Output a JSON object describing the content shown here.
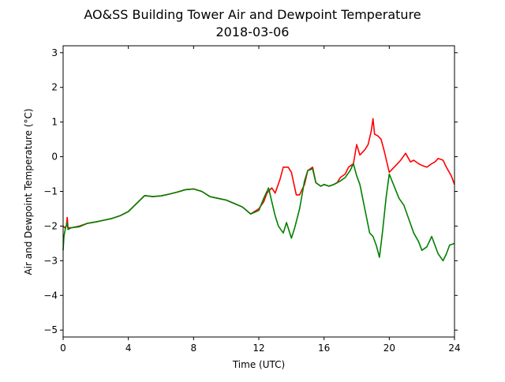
{
  "chart_data": {
    "type": "line",
    "title": "AO&SS Building Tower Air and Dewpoint Temperature",
    "subtitle": "2018-03-06",
    "xlabel": "Time (UTC)",
    "ylabel": "Air and Dewpoint Temperature (°C)",
    "xlim": [
      0,
      24
    ],
    "ylim": [
      -5.2,
      3.2
    ],
    "xticks": [
      0,
      4,
      8,
      12,
      16,
      20,
      24
    ],
    "xtick_labels": [
      "0",
      "4",
      "8",
      "12",
      "16",
      "20",
      "24"
    ],
    "yticks": [
      -5,
      -4,
      -3,
      -2,
      -1,
      0,
      1,
      2,
      3
    ],
    "ytick_labels": [
      "−5",
      "−4",
      "−3",
      "−2",
      "−1",
      "0",
      "1",
      "2",
      "3"
    ],
    "grid": false,
    "series": [
      {
        "color": "#ff0000",
        "x": [
          0,
          0.1,
          0.2,
          0.25,
          0.3,
          0.5,
          1,
          1.5,
          2,
          2.5,
          3,
          3.5,
          4,
          4.5,
          5,
          5.5,
          6,
          6.5,
          7,
          7.5,
          8,
          8.5,
          9,
          9.5,
          10,
          10.5,
          11,
          11.5,
          12,
          12.3,
          12.5,
          12.8,
          13,
          13.3,
          13.5,
          13.8,
          14,
          14.3,
          14.5,
          14.8,
          15,
          15.3,
          15.5,
          15.8,
          16,
          16.3,
          16.6,
          16.8,
          17,
          17.3,
          17.5,
          17.8,
          18,
          18.2,
          18.5,
          18.7,
          18.9,
          19,
          19.1,
          19.3,
          19.5,
          19.7,
          20,
          20.3,
          20.5,
          20.7,
          21,
          21.3,
          21.5,
          21.8,
          22,
          22.3,
          22.6,
          22.8,
          23,
          23.3,
          23.5,
          23.8,
          24
        ],
        "y": [
          -2.0,
          -2.05,
          -2.0,
          -1.75,
          -2.05,
          -2.05,
          -2.0,
          -1.92,
          -1.88,
          -1.83,
          -1.78,
          -1.7,
          -1.58,
          -1.35,
          -1.12,
          -1.15,
          -1.13,
          -1.08,
          -1.02,
          -0.95,
          -0.93,
          -1.0,
          -1.15,
          -1.2,
          -1.25,
          -1.35,
          -1.45,
          -1.65,
          -1.5,
          -1.3,
          -1.05,
          -0.9,
          -1.05,
          -0.65,
          -0.3,
          -0.3,
          -0.45,
          -1.1,
          -1.1,
          -0.8,
          -0.4,
          -0.3,
          -0.75,
          -0.85,
          -0.8,
          -0.85,
          -0.8,
          -0.75,
          -0.6,
          -0.5,
          -0.3,
          -0.2,
          0.35,
          0.05,
          0.2,
          0.35,
          0.75,
          1.1,
          0.65,
          0.6,
          0.5,
          0.15,
          -0.45,
          -0.3,
          -0.2,
          -0.1,
          0.1,
          -0.15,
          -0.1,
          -0.2,
          -0.25,
          -0.3,
          -0.2,
          -0.15,
          -0.05,
          -0.1,
          -0.3,
          -0.55,
          -0.8
        ]
      },
      {
        "color": "#008000",
        "x": [
          0,
          0.05,
          0.15,
          0.25,
          0.3,
          0.5,
          1,
          1.5,
          2,
          2.5,
          3,
          3.5,
          4,
          4.5,
          5,
          5.5,
          6,
          6.5,
          7,
          7.5,
          8,
          8.5,
          9,
          9.5,
          10,
          10.5,
          11,
          11.5,
          12,
          12.3,
          12.6,
          12.8,
          13,
          13.2,
          13.5,
          13.7,
          14,
          14.2,
          14.5,
          14.8,
          15,
          15.3,
          15.5,
          15.8,
          16,
          16.3,
          16.6,
          16.8,
          17,
          17.3,
          17.6,
          17.8,
          18,
          18.2,
          18.5,
          18.8,
          19,
          19.2,
          19.4,
          19.6,
          19.8,
          20,
          20.3,
          20.6,
          20.9,
          21.2,
          21.5,
          21.8,
          22,
          22.3,
          22.6,
          22.8,
          23,
          23.3,
          23.5,
          23.7,
          24
        ],
        "y": [
          -2.7,
          -2.3,
          -2.05,
          -1.9,
          -2.1,
          -2.05,
          -2.02,
          -1.92,
          -1.88,
          -1.83,
          -1.78,
          -1.7,
          -1.58,
          -1.35,
          -1.12,
          -1.15,
          -1.13,
          -1.08,
          -1.02,
          -0.95,
          -0.93,
          -1.0,
          -1.15,
          -1.2,
          -1.25,
          -1.35,
          -1.45,
          -1.65,
          -1.55,
          -1.2,
          -0.9,
          -1.3,
          -1.7,
          -2.0,
          -2.2,
          -1.9,
          -2.35,
          -2.05,
          -1.5,
          -0.7,
          -0.4,
          -0.35,
          -0.75,
          -0.85,
          -0.8,
          -0.85,
          -0.8,
          -0.75,
          -0.7,
          -0.6,
          -0.4,
          -0.2,
          -0.55,
          -0.8,
          -1.5,
          -2.2,
          -2.3,
          -2.55,
          -2.9,
          -2.1,
          -1.2,
          -0.5,
          -0.85,
          -1.2,
          -1.4,
          -1.8,
          -2.2,
          -2.45,
          -2.7,
          -2.6,
          -2.3,
          -2.55,
          -2.8,
          -3.0,
          -2.8,
          -2.55,
          -2.5
        ]
      }
    ]
  }
}
